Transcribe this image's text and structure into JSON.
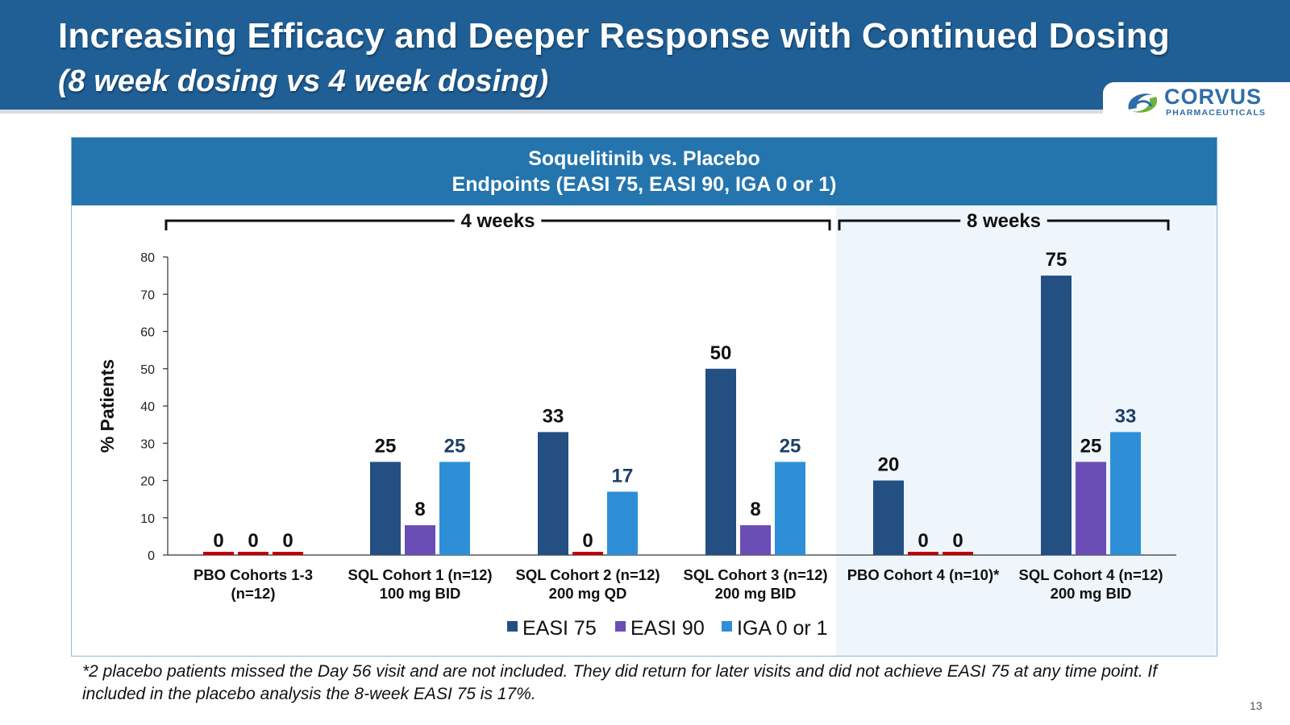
{
  "slide": {
    "title": "Increasing Efficacy and Deeper Response with Continued Dosing",
    "subtitle": "(8 week dosing vs 4 week dosing)",
    "page_number": "13",
    "footnote": "*2 placebo patients missed the Day 56 visit and are not included. They did return for later visits and did not achieve EASI 75 at any time point. If included in the placebo analysis the 8-week EASI 75 is 17%."
  },
  "logo": {
    "name": "CORVUS",
    "tagline": "PHARMACEUTICALS",
    "colors": [
      "#2f6da8",
      "#6cb33f"
    ]
  },
  "panel": {
    "title_line1": "Soquelitinib vs. Placebo",
    "title_line2": "Endpoints (EASI 75, EASI 90, IGA 0 or 1)"
  },
  "colors": {
    "header_bg": "#1f5f96",
    "panel_header_bg": "#2474ad",
    "highlight_bg": "#eef5fb",
    "zero_marker": "#c00000"
  },
  "chart_data": {
    "type": "bar",
    "title": "",
    "xlabel": "",
    "ylabel": "% Patients",
    "ylim": [
      0,
      80
    ],
    "yticks": [
      0,
      10,
      20,
      30,
      40,
      50,
      60,
      70,
      80
    ],
    "grid": false,
    "legend_position": "bottom",
    "categories": [
      [
        "PBO Cohorts 1-3",
        "(n=12)"
      ],
      [
        "SQL Cohort 1 (n=12)",
        "100 mg BID"
      ],
      [
        "SQL Cohort 2 (n=12)",
        "200 mg QD"
      ],
      [
        "SQL Cohort 3 (n=12)",
        "200 mg BID"
      ],
      [
        "PBO Cohort 4 (n=10)*",
        ""
      ],
      [
        "SQL Cohort 4 (n=12)",
        "200 mg BID"
      ]
    ],
    "series": [
      {
        "name": "EASI 75",
        "color": "#234f83",
        "values": [
          0,
          25,
          33,
          50,
          20,
          75
        ]
      },
      {
        "name": "EASI 90",
        "color": "#6b4eb5",
        "values": [
          0,
          8,
          0,
          8,
          0,
          25
        ]
      },
      {
        "name": "IGA 0 or 1",
        "color": "#2e8fd8",
        "values": [
          0,
          25,
          17,
          25,
          0,
          33
        ]
      }
    ],
    "groups": [
      {
        "label": "4 weeks",
        "categories": [
          0,
          1,
          2,
          3
        ]
      },
      {
        "label": "8 weeks",
        "categories": [
          4,
          5
        ],
        "highlighted": true
      }
    ]
  }
}
